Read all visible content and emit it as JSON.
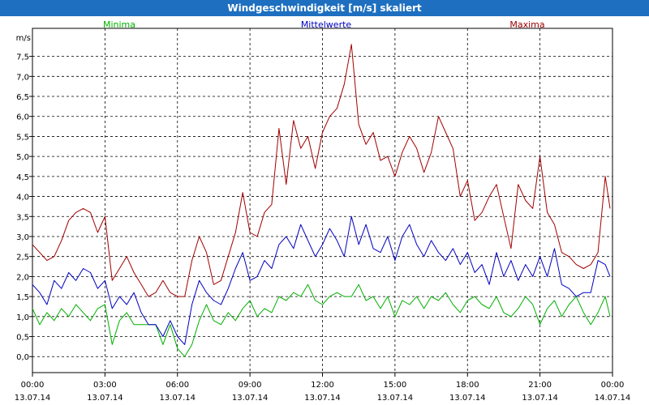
{
  "window": {
    "title": "Windgeschwindigkeit [m/s] skaliert"
  },
  "colors": {
    "titlebar": "#1e6fbf",
    "minima": "#00b000",
    "mittelwerte": "#0000c0",
    "maxima": "#a00000",
    "grid": "#000000"
  },
  "chart_data": {
    "type": "line",
    "title": "Windgeschwindigkeit [m/s] skaliert",
    "ylabel": "m/s",
    "xlabel": "",
    "ylim": [
      -0.4,
      8.2
    ],
    "xlim": [
      0,
      24
    ],
    "grid": true,
    "legend_placement": "top",
    "y_ticks": [
      0.0,
      0.5,
      1.0,
      1.5,
      2.0,
      2.5,
      3.0,
      3.5,
      4.0,
      4.5,
      5.0,
      5.5,
      6.0,
      6.5,
      7.0,
      7.5
    ],
    "y_tick_labels": [
      "0,0",
      "0,5",
      "1,0",
      "1,5",
      "2,0",
      "2,5",
      "3,0",
      "3,5",
      "4,0",
      "4,5",
      "5,0",
      "5,5",
      "6,0",
      "6,5",
      "7,0",
      "7,5"
    ],
    "x_ticks": [
      0,
      3,
      6,
      9,
      12,
      15,
      18,
      21,
      24
    ],
    "x_tick_labels": [
      [
        "00:00",
        "13.07.14"
      ],
      [
        "03:00",
        "13.07.14"
      ],
      [
        "06:00",
        "13.07.14"
      ],
      [
        "09:00",
        "13.07.14"
      ],
      [
        "12:00",
        "13.07.14"
      ],
      [
        "15:00",
        "13.07.14"
      ],
      [
        "18:00",
        "13.07.14"
      ],
      [
        "21:00",
        "13.07.14"
      ],
      [
        "00:00",
        "14.07.14"
      ]
    ],
    "x_hours": [
      0.0,
      0.3,
      0.6,
      0.9,
      1.2,
      1.5,
      1.8,
      2.1,
      2.4,
      2.7,
      3.0,
      3.3,
      3.6,
      3.9,
      4.2,
      4.5,
      4.8,
      5.1,
      5.4,
      5.7,
      6.0,
      6.3,
      6.6,
      6.9,
      7.2,
      7.5,
      7.8,
      8.1,
      8.4,
      8.7,
      9.0,
      9.3,
      9.6,
      9.9,
      10.2,
      10.5,
      10.8,
      11.1,
      11.4,
      11.7,
      12.0,
      12.3,
      12.6,
      12.9,
      13.2,
      13.5,
      13.8,
      14.1,
      14.4,
      14.7,
      15.0,
      15.3,
      15.6,
      15.9,
      16.2,
      16.5,
      16.8,
      17.1,
      17.4,
      17.7,
      18.0,
      18.3,
      18.6,
      18.9,
      19.2,
      19.5,
      19.8,
      20.1,
      20.4,
      20.7,
      21.0,
      21.3,
      21.6,
      21.9,
      22.2,
      22.5,
      22.8,
      23.1,
      23.4,
      23.7,
      23.9
    ],
    "series": [
      {
        "name": "Minima",
        "values": [
          1.2,
          0.8,
          1.1,
          0.9,
          1.2,
          1.0,
          1.3,
          1.1,
          0.9,
          1.2,
          1.3,
          0.3,
          0.9,
          1.1,
          0.8,
          0.8,
          0.8,
          0.8,
          0.3,
          0.8,
          0.2,
          0.0,
          0.3,
          0.9,
          1.3,
          0.9,
          0.8,
          1.1,
          0.9,
          1.2,
          1.4,
          1.0,
          1.2,
          1.1,
          1.5,
          1.4,
          1.6,
          1.5,
          1.8,
          1.4,
          1.3,
          1.5,
          1.6,
          1.5,
          1.5,
          1.8,
          1.4,
          1.5,
          1.2,
          1.5,
          1.0,
          1.4,
          1.3,
          1.5,
          1.2,
          1.5,
          1.4,
          1.6,
          1.3,
          1.1,
          1.4,
          1.5,
          1.3,
          1.2,
          1.5,
          1.1,
          1.0,
          1.2,
          1.5,
          1.3,
          0.8,
          1.2,
          1.4,
          1.0,
          1.3,
          1.5,
          1.1,
          0.8,
          1.1,
          1.5,
          1.0
        ]
      },
      {
        "name": "Mittelwerte",
        "values": [
          1.8,
          1.6,
          1.3,
          1.9,
          1.7,
          2.1,
          1.9,
          2.2,
          2.1,
          1.7,
          1.9,
          1.2,
          1.5,
          1.3,
          1.6,
          1.1,
          0.8,
          0.8,
          0.5,
          0.9,
          0.5,
          0.3,
          1.3,
          1.9,
          1.6,
          1.4,
          1.3,
          1.7,
          2.2,
          2.6,
          1.9,
          2.0,
          2.4,
          2.2,
          2.8,
          3.0,
          2.7,
          3.3,
          2.9,
          2.5,
          2.8,
          3.2,
          2.9,
          2.5,
          3.5,
          2.8,
          3.3,
          2.7,
          2.6,
          3.0,
          2.4,
          3.0,
          3.3,
          2.8,
          2.5,
          2.9,
          2.6,
          2.4,
          2.7,
          2.3,
          2.6,
          2.1,
          2.3,
          1.8,
          2.6,
          2.0,
          2.4,
          1.9,
          2.3,
          2.0,
          2.5,
          2.0,
          2.7,
          1.8,
          1.7,
          1.5,
          1.6,
          1.6,
          2.4,
          2.3,
          2.0
        ]
      },
      {
        "name": "Maxima",
        "values": [
          2.8,
          2.6,
          2.4,
          2.5,
          2.9,
          3.4,
          3.6,
          3.7,
          3.6,
          3.1,
          3.5,
          1.9,
          2.2,
          2.5,
          2.1,
          1.8,
          1.5,
          1.6,
          1.9,
          1.6,
          1.5,
          1.5,
          2.4,
          3.0,
          2.6,
          1.8,
          1.9,
          2.5,
          3.1,
          4.1,
          3.1,
          3.0,
          3.6,
          3.8,
          5.7,
          4.3,
          5.9,
          5.2,
          5.5,
          4.7,
          5.6,
          6.0,
          6.2,
          6.8,
          7.8,
          5.8,
          5.3,
          5.6,
          4.9,
          5.0,
          4.5,
          5.1,
          5.5,
          5.2,
          4.6,
          5.1,
          6.0,
          5.6,
          5.2,
          4.0,
          4.4,
          3.4,
          3.6,
          4.0,
          4.3,
          3.5,
          2.7,
          4.3,
          3.9,
          3.7,
          5.0,
          3.6,
          3.3,
          2.6,
          2.5,
          2.3,
          2.2,
          2.3,
          2.6,
          4.5,
          3.7
        ]
      }
    ]
  }
}
